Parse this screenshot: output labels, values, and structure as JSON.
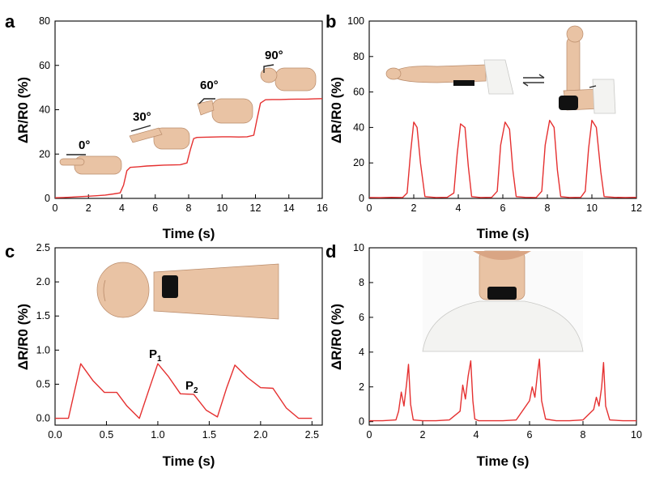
{
  "chart_data": [
    {
      "panel": "a",
      "type": "line",
      "xlabel": "Time (s)",
      "ylabel": "ΔR/R0 (%)",
      "xlim": [
        0,
        16
      ],
      "ylim": [
        0,
        80
      ],
      "xticks": [
        "0",
        "2",
        "4",
        "6",
        "8",
        "10",
        "12",
        "14",
        "16"
      ],
      "yticks": [
        "0",
        "20",
        "40",
        "60",
        "80"
      ],
      "annotations": [
        "0°",
        "30°",
        "60°",
        "90°"
      ],
      "series": [
        {
          "color": "#e53030",
          "x": [
            0,
            0.5,
            1,
            1.5,
            2,
            2.5,
            3,
            3.5,
            3.9,
            4.1,
            4.3,
            4.5,
            5,
            5.5,
            6,
            6.5,
            7,
            7.5,
            7.9,
            8.1,
            8.3,
            8.5,
            9,
            9.5,
            10,
            10.5,
            11,
            11.5,
            11.9,
            12.1,
            12.3,
            12.6,
            13,
            13.5,
            14,
            14.5,
            15,
            15.5,
            16
          ],
          "y": [
            0.3,
            0.4,
            0.6,
            0.8,
            1.0,
            1.2,
            1.5,
            2.0,
            2.5,
            6.0,
            12.5,
            14.0,
            14.3,
            14.6,
            14.8,
            15.0,
            15.1,
            15.2,
            16.0,
            22.0,
            27.0,
            27.5,
            27.6,
            27.7,
            27.8,
            27.8,
            27.7,
            27.8,
            28.5,
            36.0,
            43.0,
            44.5,
            44.6,
            44.6,
            44.7,
            44.8,
            44.8,
            44.9,
            45.0
          ]
        }
      ]
    },
    {
      "panel": "b",
      "type": "line",
      "xlabel": "Time (s)",
      "ylabel": "ΔR/R0 (%)",
      "xlim": [
        0,
        12
      ],
      "ylim": [
        0,
        100
      ],
      "xticks": [
        "0",
        "2",
        "4",
        "6",
        "8",
        "10",
        "12"
      ],
      "yticks": [
        "0",
        "20",
        "40",
        "60",
        "80",
        "100"
      ],
      "series": [
        {
          "color": "#e53030",
          "x": [
            0,
            0.5,
            1,
            1.5,
            1.7,
            1.85,
            2.0,
            2.15,
            2.3,
            2.5,
            3,
            3.5,
            3.8,
            3.95,
            4.1,
            4.3,
            4.45,
            4.6,
            5,
            5.5,
            5.75,
            5.9,
            6.1,
            6.3,
            6.45,
            6.6,
            7,
            7.5,
            7.75,
            7.9,
            8.1,
            8.3,
            8.45,
            8.6,
            9,
            9.5,
            9.7,
            9.85,
            10.0,
            10.2,
            10.4,
            10.55,
            11,
            11.5,
            12
          ],
          "y": [
            0.5,
            0.4,
            0.6,
            0.5,
            3,
            25,
            43,
            40,
            20,
            1,
            0.5,
            0.6,
            3,
            25,
            42,
            40,
            18,
            1,
            0.5,
            0.6,
            4,
            30,
            43,
            39,
            16,
            1,
            0.6,
            0.5,
            4,
            30,
            44,
            40,
            16,
            1,
            0.5,
            0.6,
            4,
            28,
            44,
            40,
            15,
            1,
            0.6,
            0.5,
            0.6
          ]
        }
      ]
    },
    {
      "panel": "c",
      "type": "line",
      "xlabel": "Time (s)",
      "ylabel": "ΔR/R0 (%)",
      "xlim": [
        0,
        2.6
      ],
      "ylim": [
        -0.1,
        2.5
      ],
      "xticks": [
        "0.0",
        "0.5",
        "1.0",
        "1.5",
        "2.0",
        "2.5"
      ],
      "yticks": [
        "0.0",
        "0.5",
        "1.0",
        "1.5",
        "2.0",
        "2.5"
      ],
      "annotations": [
        "P",
        "1",
        "P",
        "2"
      ],
      "series": [
        {
          "color": "#e53030",
          "x": [
            0,
            0.13,
            0.25,
            0.37,
            0.48,
            0.6,
            0.7,
            0.82,
            0.92,
            1.0,
            1.1,
            1.22,
            1.35,
            1.47,
            1.58,
            1.67,
            1.75,
            1.87,
            2.0,
            2.12,
            2.25,
            2.37,
            2.5
          ],
          "y": [
            0,
            0,
            0.8,
            0.55,
            0.38,
            0.38,
            0.18,
            0.0,
            0.45,
            0.8,
            0.62,
            0.36,
            0.35,
            0.12,
            0.02,
            0.45,
            0.78,
            0.6,
            0.45,
            0.44,
            0.15,
            0.0,
            0.0
          ]
        }
      ]
    },
    {
      "panel": "d",
      "type": "line",
      "xlabel": "Time (s)",
      "ylabel": "ΔR/R0 (%)",
      "xlim": [
        0,
        10
      ],
      "ylim": [
        -0.2,
        10
      ],
      "xticks": [
        "0",
        "2",
        "4",
        "6",
        "8",
        "10"
      ],
      "yticks": [
        "0",
        "2",
        "4",
        "6",
        "8",
        "10"
      ],
      "series": [
        {
          "color": "#e53030",
          "x": [
            0,
            0.5,
            1.0,
            1.1,
            1.2,
            1.3,
            1.4,
            1.47,
            1.55,
            1.65,
            2.0,
            2.5,
            3.0,
            3.4,
            3.5,
            3.6,
            3.7,
            3.8,
            3.88,
            3.95,
            4.1,
            4.5,
            5.0,
            5.5,
            6.0,
            6.1,
            6.2,
            6.3,
            6.37,
            6.45,
            6.6,
            7.0,
            7.5,
            8.0,
            8.4,
            8.5,
            8.6,
            8.7,
            8.77,
            8.85,
            9.0,
            9.5,
            10.0
          ],
          "y": [
            0.05,
            0.05,
            0.1,
            0.6,
            1.7,
            0.9,
            2.2,
            3.3,
            1.0,
            0.1,
            0.05,
            0.05,
            0.1,
            0.6,
            2.1,
            1.3,
            2.6,
            3.5,
            1.2,
            0.15,
            0.05,
            0.05,
            0.05,
            0.1,
            1.2,
            2.0,
            1.4,
            2.8,
            3.6,
            1.2,
            0.15,
            0.05,
            0.05,
            0.1,
            0.7,
            1.4,
            0.9,
            2.0,
            3.4,
            0.9,
            0.1,
            0.05,
            0.05
          ]
        }
      ]
    }
  ]
}
